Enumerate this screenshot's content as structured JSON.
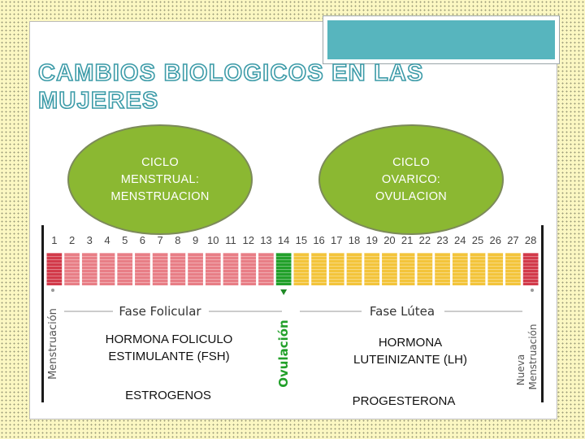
{
  "title": "CAMBIOS BIOLOGICOS EN LAS MUJERES",
  "ellipse_left": {
    "line1": "CICLO",
    "line2": "MENSTRUAL:",
    "line3": "MENSTRUACION"
  },
  "ellipse_right": {
    "line1": "CICLO",
    "line2": "OVARICO:",
    "line3": "OVULACION"
  },
  "days": [
    "1",
    "2",
    "3",
    "4",
    "5",
    "6",
    "7",
    "8",
    "9",
    "10",
    "11",
    "12",
    "13",
    "14",
    "15",
    "16",
    "17",
    "18",
    "19",
    "20",
    "21",
    "22",
    "23",
    "24",
    "25",
    "26",
    "27",
    "28"
  ],
  "phases": {
    "follicular": "Fase Folicular",
    "luteal": "Fase Lútea",
    "menstruation": "Menstruación",
    "ovulation": "Ovulación",
    "new_menstruation_1": "Nueva",
    "new_menstruation_2": "Menstruación"
  },
  "hormones": {
    "fsh_1": "HORMONA FOLICULO",
    "fsh_2": "ESTIMULANTE (FSH)",
    "lh_1": "HORMONA",
    "lh_2": "LUTEINIZANTE  (LH)",
    "estrogen": "ESTROGENOS",
    "progesterone": "PROGESTERONA"
  },
  "colors": {
    "menstruation": "#d23a4a",
    "follicular": "#e87e86",
    "ovulation": "#22a02a",
    "luteal": "#f3c43b",
    "ellipse": "#8bb832",
    "title_outline": "#3c9ba8",
    "tab": "#57b5be"
  }
}
